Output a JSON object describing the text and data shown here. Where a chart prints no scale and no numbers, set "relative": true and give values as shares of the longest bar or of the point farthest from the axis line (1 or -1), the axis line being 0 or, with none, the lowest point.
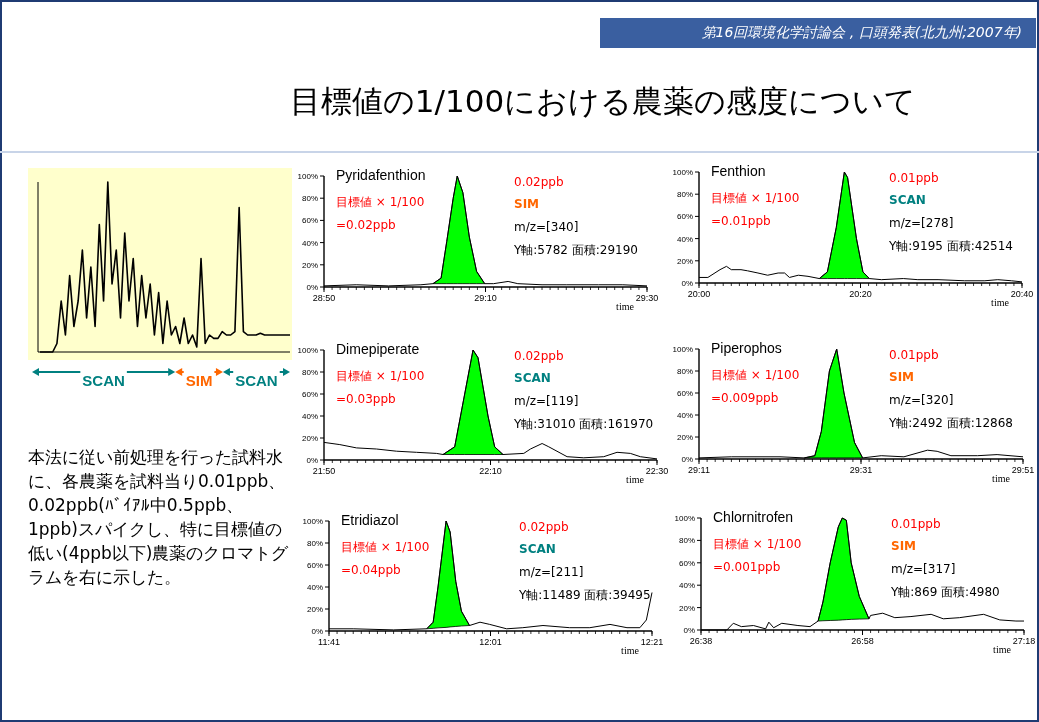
{
  "chart_data": [
    {
      "type": "other",
      "title": "目標値の1/100における農薬の感度について",
      "annotations": [
        "第16回環境化学討論会 , 口頭発表(北九州;2007年)",
        "本法に従い前処理を行った試料水に、各農薬を試料当り0.01ppb、0.02ppb(ﾊﾞｲｱﾙ中0.5ppb、1ppb)スパイクし、特に目標値の低い(4ppb以下)農薬のクロマトグラムを右に示した。"
      ]
    },
    {
      "type": "line",
      "relative": true,
      "categories": [
        null,
        null,
        null,
        null,
        null,
        null,
        null,
        null,
        null,
        null,
        null,
        null,
        null,
        null,
        null,
        null,
        null,
        null,
        null,
        null,
        null,
        null,
        null,
        null,
        null,
        null,
        null,
        null,
        null,
        null,
        null,
        null,
        null,
        null,
        null,
        null,
        null,
        null,
        null,
        null,
        null,
        null,
        null,
        null,
        null,
        null,
        null,
        null,
        null,
        null,
        null,
        null,
        null,
        null,
        null,
        null,
        null,
        null,
        null,
        null
      ],
      "values": [
        0,
        0,
        0,
        0,
        0.05,
        0.3,
        0.1,
        0.45,
        0.15,
        0.3,
        0.6,
        0.2,
        0.5,
        0.15,
        0.75,
        0.3,
        1,
        0.4,
        0.6,
        0.2,
        0.7,
        0.3,
        0.55,
        0.15,
        0.45,
        0.2,
        0.4,
        0.1,
        0.35,
        0.05,
        0.3,
        0.1,
        0.15,
        0.05,
        0.2,
        0.05,
        0.1,
        0.03,
        0.55,
        0.05,
        0.1,
        0.08,
        0.08,
        0.12,
        0.1,
        0.1,
        0.12,
        0.85,
        0.12,
        0.1,
        0.1,
        0.1,
        0.11,
        0.1,
        0.1,
        0.1,
        0.1,
        0.1,
        0.1,
        0.1
      ],
      "color": "#000000",
      "annotations": [
        "SCAN",
        "SIM",
        "SCAN"
      ]
    },
    {
      "type": "line",
      "title": "Pyridafenthion",
      "xlabel": "time",
      "xlim": [
        1730,
        1770
      ],
      "xticks": [
        {
          "value": 1730,
          "label": "28:50"
        },
        {
          "value": 1750,
          "label": "29:10"
        },
        {
          "value": 1770,
          "label": "29:30"
        }
      ],
      "ylim": [
        0,
        100
      ],
      "yticks": [
        {
          "value": 0,
          "label": "0%"
        },
        {
          "value": 20,
          "label": "20%"
        },
        {
          "value": 40,
          "label": "40%"
        },
        {
          "value": 60,
          "label": "60%"
        },
        {
          "value": 80,
          "label": "80%"
        },
        {
          "value": 100,
          "label": "100%"
        }
      ],
      "annotations": [
        "目標値 × 1/100",
        "=0.02ppb",
        "0.02ppb",
        "SIM",
        "m/z=[340]",
        "Y軸:5782 面積:29190"
      ],
      "colors": [
        "#ff0000",
        "#ff0000",
        "#ff0000",
        "#ff6600",
        "#000000",
        "#000000"
      ],
      "series": [
        {
          "type": "line",
          "color": "#000000",
          "x": [
            1730,
            1734,
            1738,
            1742,
            1743.5,
            1744.5,
            1745.2,
            1746,
            1746.5,
            1747.2,
            1748,
            1748.9,
            1749.9,
            1751,
            1752.8,
            1754,
            1757,
            1760,
            1764,
            1767,
            1770
          ],
          "values": [
            1,
            2,
            1,
            2,
            3,
            8,
            41,
            80,
            100,
            85,
            45,
            14,
            3,
            3,
            5,
            3,
            2,
            2,
            2,
            2,
            1
          ]
        },
        {
          "type": "area",
          "color": "#00ff00",
          "x": [
            1743.5,
            1744.5,
            1745.2,
            1746,
            1746.5,
            1747.2,
            1748,
            1748.9,
            1749.9
          ],
          "values": [
            3,
            8,
            41,
            80,
            100,
            85,
            45,
            14,
            3
          ]
        }
      ]
    },
    {
      "type": "line",
      "title": "Fenthion",
      "xlabel": "time",
      "xlim": [
        1200,
        1240
      ],
      "xticks": [
        {
          "value": 1200,
          "label": "20:00"
        },
        {
          "value": 1220,
          "label": "20:20"
        },
        {
          "value": 1240,
          "label": "20:40"
        }
      ],
      "ylim": [
        0,
        100
      ],
      "yticks": [
        {
          "value": 0,
          "label": "0%"
        },
        {
          "value": 20,
          "label": "20%"
        },
        {
          "value": 40,
          "label": "40%"
        },
        {
          "value": 60,
          "label": "60%"
        },
        {
          "value": 80,
          "label": "80%"
        },
        {
          "value": 100,
          "label": "100%"
        }
      ],
      "annotations": [
        "目標値 × 1/100",
        "=0.01ppb",
        "0.01ppb",
        "SCAN",
        "m/z=[278]",
        "Y軸:9195 面積:42514"
      ],
      "colors": [
        "#ff0000",
        "#ff0000",
        "#ff0000",
        "#008080",
        "#000000",
        "#000000"
      ],
      "series": [
        {
          "type": "line",
          "color": "#000000",
          "x": [
            1200,
            1201.1,
            1202.6,
            1203.4,
            1204,
            1205.2,
            1206,
            1207.3,
            1208.5,
            1209.8,
            1210.6,
            1211.2,
            1212.3,
            1213.5,
            1214.9,
            1215.9,
            1217,
            1218,
            1218.4,
            1219.5,
            1220.3,
            1221.1,
            1222.6,
            1225.3,
            1227.1,
            1229.6,
            1232.9,
            1235.4,
            1237,
            1238.7,
            1240
          ],
          "values": [
            5,
            5,
            12,
            15,
            12,
            12,
            11,
            9,
            7,
            9,
            9,
            5,
            7,
            6,
            4,
            10,
            50,
            100,
            95,
            40,
            10,
            4,
            3,
            4,
            3,
            3,
            2,
            2,
            3,
            2,
            1
          ]
        },
        {
          "type": "area",
          "color": "#00ff00",
          "x": [
            1214.9,
            1215.9,
            1217,
            1218,
            1218.4,
            1219.5,
            1220.3,
            1221.1
          ],
          "values": [
            4,
            10,
            50,
            100,
            95,
            40,
            10,
            4
          ]
        }
      ]
    },
    {
      "type": "line",
      "title": "Dimepiperate",
      "xlabel": "time",
      "xlim": [
        1310,
        1350
      ],
      "xticks": [
        {
          "value": 1310,
          "label": "21:50"
        },
        {
          "value": 1330,
          "label": "22:10"
        },
        {
          "value": 1350,
          "label": "22:30"
        }
      ],
      "ylim": [
        0,
        100
      ],
      "yticks": [
        {
          "value": 0,
          "label": "0%"
        },
        {
          "value": 20,
          "label": "20%"
        },
        {
          "value": 40,
          "label": "40%"
        },
        {
          "value": 60,
          "label": "60%"
        },
        {
          "value": 80,
          "label": "80%"
        },
        {
          "value": 100,
          "label": "100%"
        }
      ],
      "annotations": [
        "目標値 × 1/100",
        "=0.03ppb",
        "0.02ppb",
        "SCAN",
        "m/z=[119]",
        "Y軸:31010 面積:161970"
      ],
      "colors": [
        "#ff0000",
        "#ff0000",
        "#ff0000",
        "#008080",
        "#000000",
        "#000000"
      ],
      "series": [
        {
          "type": "line",
          "color": "#000000",
          "x": [
            1310,
            1311.9,
            1313.9,
            1316.3,
            1318.7,
            1321.1,
            1323.5,
            1324.3,
            1325.7,
            1326.9,
            1327.9,
            1328.5,
            1329.7,
            1330.5,
            1331.5,
            1334,
            1334.8,
            1336.2,
            1337,
            1339.2,
            1341.2,
            1343.6,
            1345.2,
            1346.8,
            1348,
            1350
          ],
          "values": [
            16,
            14,
            11,
            10,
            8,
            7,
            6,
            5,
            12,
            60,
            100,
            93,
            40,
            12,
            5,
            6,
            10,
            15,
            12,
            3,
            2,
            3,
            7,
            6,
            3,
            1
          ]
        },
        {
          "type": "area",
          "color": "#00ff00",
          "x": [
            1324.3,
            1325.7,
            1326.9,
            1327.9,
            1328.5,
            1329.7,
            1330.5,
            1331.5
          ],
          "values": [
            5,
            12,
            60,
            100,
            93,
            40,
            12,
            5
          ]
        }
      ]
    },
    {
      "type": "line",
      "title": "Piperophos",
      "xlabel": "time",
      "xlim": [
        1751,
        1791
      ],
      "xticks": [
        {
          "value": 1751,
          "label": "29:11"
        },
        {
          "value": 1771,
          "label": "29:31"
        },
        {
          "value": 1791,
          "label": "29:51"
        }
      ],
      "ylim": [
        0,
        100
      ],
      "yticks": [
        {
          "value": 0,
          "label": "0%"
        },
        {
          "value": 20,
          "label": "20%"
        },
        {
          "value": 40,
          "label": "40%"
        },
        {
          "value": 60,
          "label": "60%"
        },
        {
          "value": 80,
          "label": "80%"
        },
        {
          "value": 100,
          "label": "100%"
        }
      ],
      "annotations": [
        "目標値 × 1/100",
        "=0.009ppb",
        "0.01ppb",
        "SIM",
        "m/z=[320]",
        "Y軸:2492 面積:12868"
      ],
      "colors": [
        "#ff0000",
        "#ff0000",
        "#ff0000",
        "#ff6600",
        "#000000",
        "#000000"
      ],
      "series": [
        {
          "type": "line",
          "color": "#000000",
          "x": [
            1751,
            1755,
            1761,
            1764,
            1765.3,
            1766.1,
            1767.1,
            1768,
            1768.9,
            1770.2,
            1771.2,
            1773.5,
            1776.3,
            1779.2,
            1780.4,
            1782.1,
            1785.4,
            1787.8,
            1791
          ],
          "values": [
            1,
            2,
            2,
            1,
            3,
            25,
            80,
            100,
            60,
            15,
            1,
            3,
            2,
            8,
            7,
            3,
            3,
            4,
            2
          ]
        },
        {
          "type": "area",
          "color": "#00ff00",
          "x": [
            1764,
            1765.3,
            1766.1,
            1767.1,
            1768,
            1768.9,
            1770.2,
            1771.2
          ],
          "values": [
            1,
            3,
            25,
            80,
            100,
            60,
            15,
            1
          ]
        }
      ]
    },
    {
      "type": "line",
      "title": "Etridiazol",
      "xlabel": "time",
      "xlim": [
        701,
        741
      ],
      "xticks": [
        {
          "value": 701,
          "label": "11:41"
        },
        {
          "value": 721,
          "label": "12:01"
        },
        {
          "value": 741,
          "label": "12:21"
        }
      ],
      "ylim": [
        0,
        100
      ],
      "yticks": [
        {
          "value": 0,
          "label": "0%"
        },
        {
          "value": 20,
          "label": "20%"
        },
        {
          "value": 40,
          "label": "40%"
        },
        {
          "value": 60,
          "label": "60%"
        },
        {
          "value": 80,
          "label": "80%"
        },
        {
          "value": 100,
          "label": "100%"
        }
      ],
      "annotations": [
        "目標値 × 1/100",
        "=0.04ppb",
        "0.02ppb",
        "SCAN",
        "m/z=[211]",
        "Y軸:11489 面積:39495"
      ],
      "colors": [
        "#ff0000",
        "#ff0000",
        "#ff0000",
        "#008080",
        "#000000",
        "#000000"
      ],
      "series": [
        {
          "type": "line",
          "color": "#000000",
          "x": [
            701,
            704,
            709,
            713.1,
            713.9,
            714.5,
            715.5,
            716,
            716.7,
            717.4,
            718.4,
            719.7,
            720.9,
            723,
            725,
            727.5,
            730.8,
            733.3,
            735.8,
            737.9,
            739.5,
            740.3,
            741
          ],
          "values": [
            2,
            2,
            1,
            2,
            8,
            40,
            100,
            90,
            45,
            18,
            5,
            8,
            6,
            2,
            3,
            5,
            3,
            3,
            6,
            3,
            3,
            10,
            35
          ]
        },
        {
          "type": "area",
          "color": "#00ff00",
          "x": [
            713.1,
            713.9,
            714.5,
            715.5,
            716,
            716.7,
            717.4,
            718.4
          ],
          "values": [
            2,
            8,
            40,
            100,
            90,
            45,
            18,
            5
          ]
        }
      ]
    },
    {
      "type": "line",
      "title": "Chlornitrofen",
      "xlabel": "time",
      "xlim": [
        1598,
        1638
      ],
      "xticks": [
        {
          "value": 1598,
          "label": "26:38"
        },
        {
          "value": 1618,
          "label": "26:58"
        },
        {
          "value": 1638,
          "label": "27:18"
        }
      ],
      "ylim": [
        0,
        100
      ],
      "yticks": [
        {
          "value": 0,
          "label": "0%"
        },
        {
          "value": 20,
          "label": "20%"
        },
        {
          "value": 40,
          "label": "40%"
        },
        {
          "value": 60,
          "label": "60%"
        },
        {
          "value": 80,
          "label": "80%"
        },
        {
          "value": 100,
          "label": "100%"
        }
      ],
      "annotations": [
        "目標値 × 1/100",
        "=0.001ppb",
        "0.01ppb",
        "SIM",
        "m/z=[317]",
        "Y軸:869 面積:4980"
      ],
      "colors": [
        "#ff0000",
        "#ff0000",
        "#ff0000",
        "#ff6600",
        "#000000",
        "#000000"
      ],
      "series": [
        {
          "type": "line",
          "color": "#000000",
          "x": [
            1598,
            1601.2,
            1602,
            1603,
            1604.5,
            1606,
            1606.4,
            1607,
            1608,
            1610,
            1611.5,
            1612.5,
            1613.1,
            1614,
            1615,
            1615.5,
            1616,
            1616.6,
            1617.6,
            1618.8,
            1619,
            1620.5,
            1622,
            1624,
            1626.5,
            1628,
            1630,
            1633,
            1635,
            1637,
            1638
          ],
          "values": [
            0,
            0,
            6,
            3,
            4,
            1,
            7,
            2,
            6,
            4,
            3,
            8,
            25,
            60,
            92,
            100,
            98,
            60,
            30,
            10,
            13,
            15,
            11,
            12,
            14,
            10,
            11,
            14,
            9,
            8,
            8
          ]
        },
        {
          "type": "area",
          "color": "#00ff00",
          "x": [
            1612.5,
            1613.1,
            1614,
            1615,
            1615.5,
            1616,
            1616.6,
            1617.6,
            1618.8
          ],
          "values": [
            8,
            25,
            60,
            92,
            100,
            98,
            60,
            30,
            10
          ]
        }
      ]
    }
  ]
}
